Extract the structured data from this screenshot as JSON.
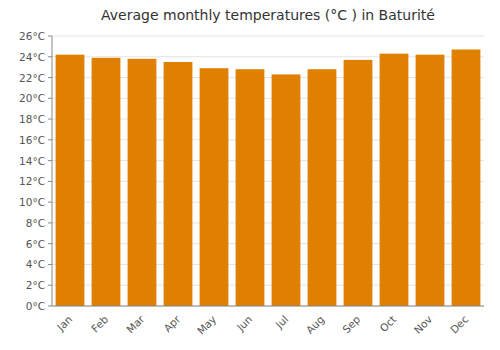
{
  "chart_data": {
    "type": "bar",
    "title": "Average monthly temperatures (°C ) in Baturité",
    "categories": [
      "Jan",
      "Feb",
      "Mar",
      "Apr",
      "May",
      "Jun",
      "Jul",
      "Aug",
      "Sep",
      "Oct",
      "Nov",
      "Dec"
    ],
    "values": [
      24.2,
      23.9,
      23.8,
      23.5,
      22.9,
      22.8,
      22.3,
      22.8,
      23.7,
      24.3,
      24.2,
      24.7
    ],
    "color": "#E08000",
    "ylim": [
      0,
      26
    ],
    "yticks": [
      {
        "value": 0,
        "label": "0°C"
      },
      {
        "value": 2,
        "label": "2°C"
      },
      {
        "value": 4,
        "label": "4°C"
      },
      {
        "value": 6,
        "label": "6°C"
      },
      {
        "value": 8,
        "label": "8°C"
      },
      {
        "value": 10,
        "label": "10°C"
      },
      {
        "value": 12,
        "label": "12°C"
      },
      {
        "value": 14,
        "label": "14°C"
      },
      {
        "value": 16,
        "label": "16°C"
      },
      {
        "value": 18,
        "label": "18°C"
      },
      {
        "value": 20,
        "label": "20°C"
      },
      {
        "value": 22,
        "label": "22°C"
      },
      {
        "value": 24,
        "label": "24°C"
      },
      {
        "value": 26,
        "label": "26°C"
      }
    ],
    "grid": true
  }
}
